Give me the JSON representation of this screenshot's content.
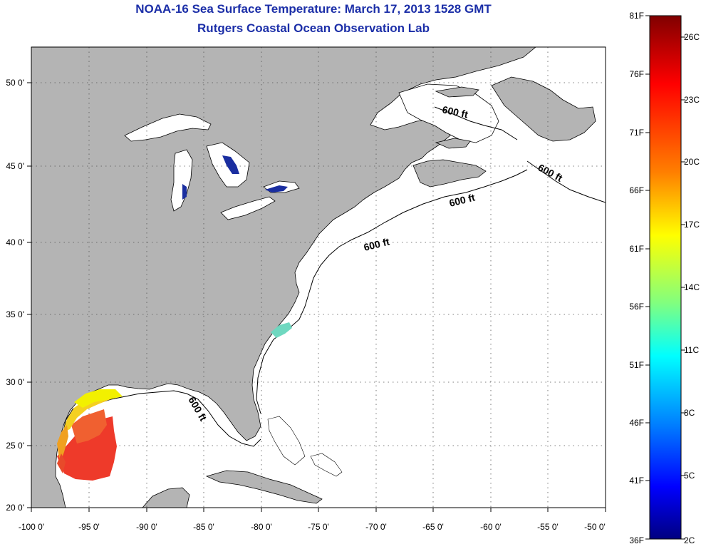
{
  "header": {
    "title": "NOAA-16 Sea Surface Temperature:  March 17, 2013 1528 GMT",
    "subtitle": "Rutgers Coastal Ocean Observation Lab"
  },
  "map": {
    "lon_range": [
      -100,
      -50
    ],
    "lat_range": [
      20,
      52
    ],
    "x_ticks": [
      "-100 0'",
      "-95 0'",
      "-90 0'",
      "-85 0'",
      "-80 0'",
      "-75 0'",
      "-70 0'",
      "-65 0'",
      "-60 0'",
      "-55 0'",
      "-50 0'"
    ],
    "y_ticks": [
      "50 0'",
      "45 0'",
      "40 0'",
      "35 0'",
      "30 0'",
      "25 0'",
      "20 0'"
    ],
    "contour_labels": [
      "600 ft",
      "600 ft",
      "600 ft",
      "600 ft",
      "600 ft"
    ],
    "land_color": "#b4b4b4",
    "ocean_color": "#ffffff"
  },
  "colorbar": {
    "fahrenheit": [
      "81F",
      "76F",
      "71F",
      "66F",
      "61F",
      "56F",
      "51F",
      "46F",
      "41F",
      "36F"
    ],
    "celsius": [
      "26C",
      "23C",
      "20C",
      "17C",
      "14C",
      "11C",
      "8C",
      "5C",
      "2C"
    ],
    "colormap": [
      "#800000",
      "#ff0000",
      "#ff8000",
      "#ffff00",
      "#80ff80",
      "#00ffff",
      "#0080ff",
      "#0000ff",
      "#000080"
    ]
  }
}
